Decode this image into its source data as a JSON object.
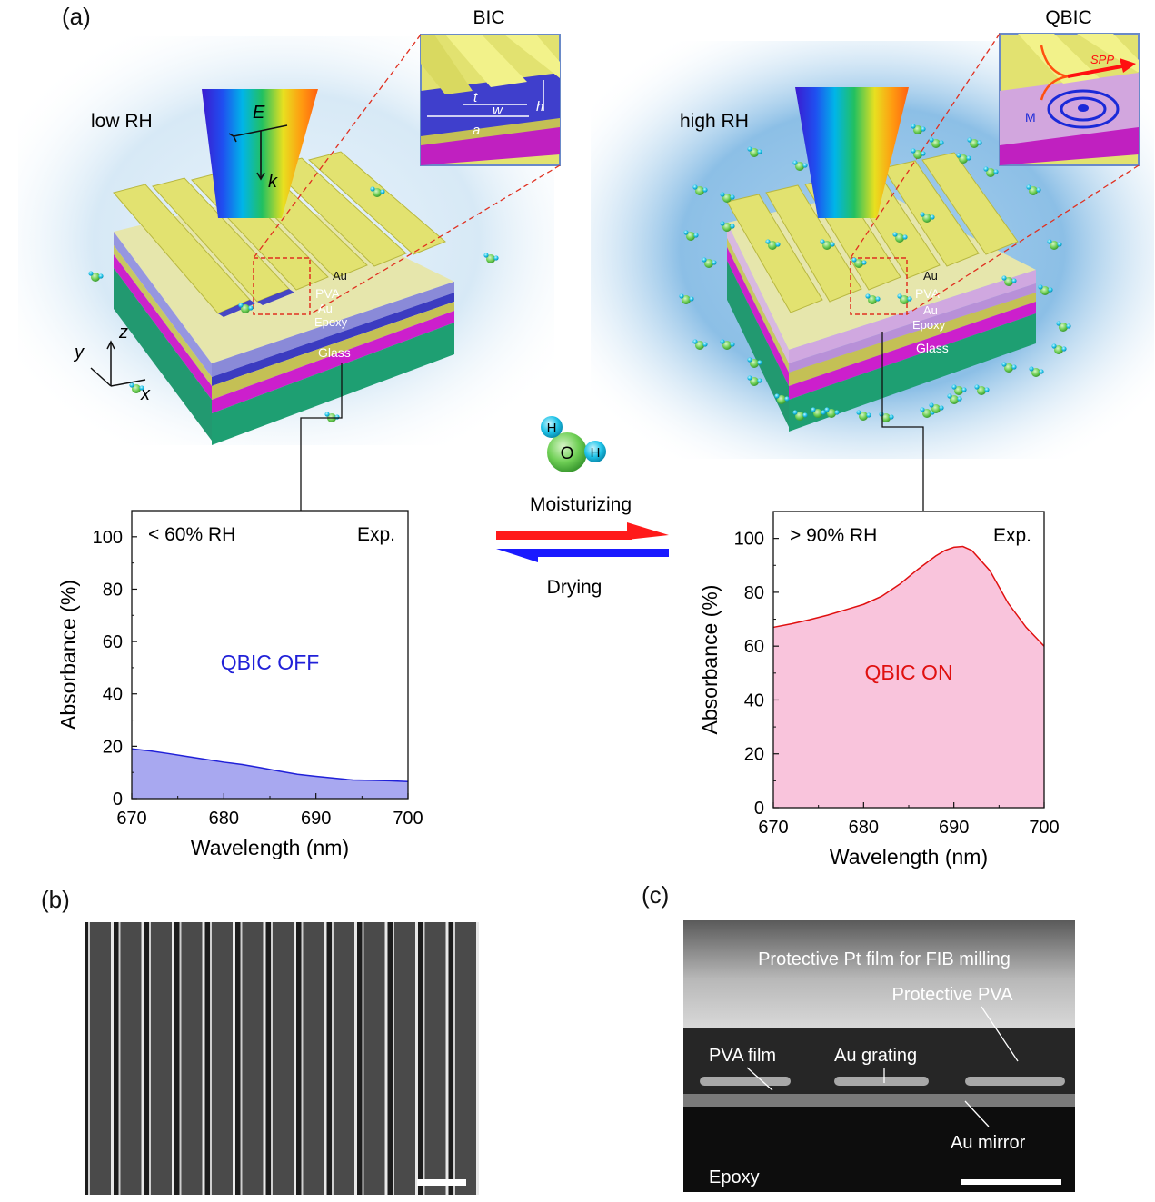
{
  "panels": {
    "a": "(a)",
    "b": "(b)",
    "c": "(c)"
  },
  "insets": {
    "left_title": "BIC",
    "right_title": "QBIC"
  },
  "scene_left": {
    "condition": "low RH",
    "field_E": "E",
    "field_k": "k",
    "layers": [
      "Au",
      "PVA",
      "Au",
      "Epoxy",
      "Glass"
    ],
    "axes": [
      "z",
      "y",
      "x"
    ],
    "inset_params": [
      "t",
      "w",
      "h",
      "a"
    ]
  },
  "scene_right": {
    "condition": "high RH",
    "layers": [
      "Au",
      "PVA",
      "Au",
      "Epoxy",
      "Glass"
    ],
    "inset_labels": [
      "SPP",
      "M"
    ]
  },
  "molecule": {
    "atoms": [
      "H",
      "O",
      "H"
    ]
  },
  "transition": {
    "forward": "Moisturizing",
    "backward": "Drying",
    "forward_color": "#ff1a1a",
    "backward_color": "#1a1aff"
  },
  "chart_data": [
    {
      "type": "area",
      "title": "",
      "xlabel": "Wavelength (nm)",
      "ylabel": "Absorbance (%)",
      "xlim": [
        670,
        700
      ],
      "ylim": [
        0,
        110
      ],
      "xticks": [
        670,
        680,
        690,
        700
      ],
      "yticks": [
        0,
        20,
        40,
        60,
        80,
        100
      ],
      "annotation_left": "< 60% RH",
      "annotation_right": "Exp.",
      "state_label": "QBIC OFF",
      "color": "#2020d8",
      "fill": "#a8a8f0",
      "x": [
        670,
        672,
        674,
        676,
        678,
        680,
        682,
        684,
        686,
        688,
        690,
        692,
        694,
        696,
        698,
        700
      ],
      "y": [
        19,
        18.2,
        17.2,
        16.1,
        15,
        13.9,
        13,
        11.8,
        10.5,
        9.3,
        8.5,
        7.8,
        7.1,
        7.0,
        6.8,
        6.5
      ]
    },
    {
      "type": "area",
      "title": "",
      "xlabel": "Wavelength (nm)",
      "ylabel": "Absorbance (%)",
      "xlim": [
        670,
        700
      ],
      "ylim": [
        0,
        110
      ],
      "xticks": [
        670,
        680,
        690,
        700
      ],
      "yticks": [
        0,
        20,
        40,
        60,
        80,
        100
      ],
      "annotation_left": "> 90% RH",
      "annotation_right": "Exp.",
      "state_label": "QBIC ON",
      "color": "#e01010",
      "fill": "#f9c4dc",
      "x": [
        670,
        672,
        674,
        676,
        678,
        680,
        682,
        684,
        686,
        688,
        689,
        690,
        691,
        692,
        694,
        696,
        698,
        700
      ],
      "y": [
        67,
        68.3,
        69.8,
        71.5,
        73.5,
        75.5,
        78.5,
        83,
        88.5,
        93.5,
        95.5,
        96.7,
        97,
        95.5,
        88,
        76,
        67,
        60
      ]
    }
  ],
  "panel_b": {
    "scale_bar": "scale bar"
  },
  "panel_c": {
    "labels": [
      "Protective Pt film for FIB milling",
      "Protective PVA",
      "PVA film",
      "Au grating",
      "Au mirror",
      "Epoxy"
    ]
  }
}
